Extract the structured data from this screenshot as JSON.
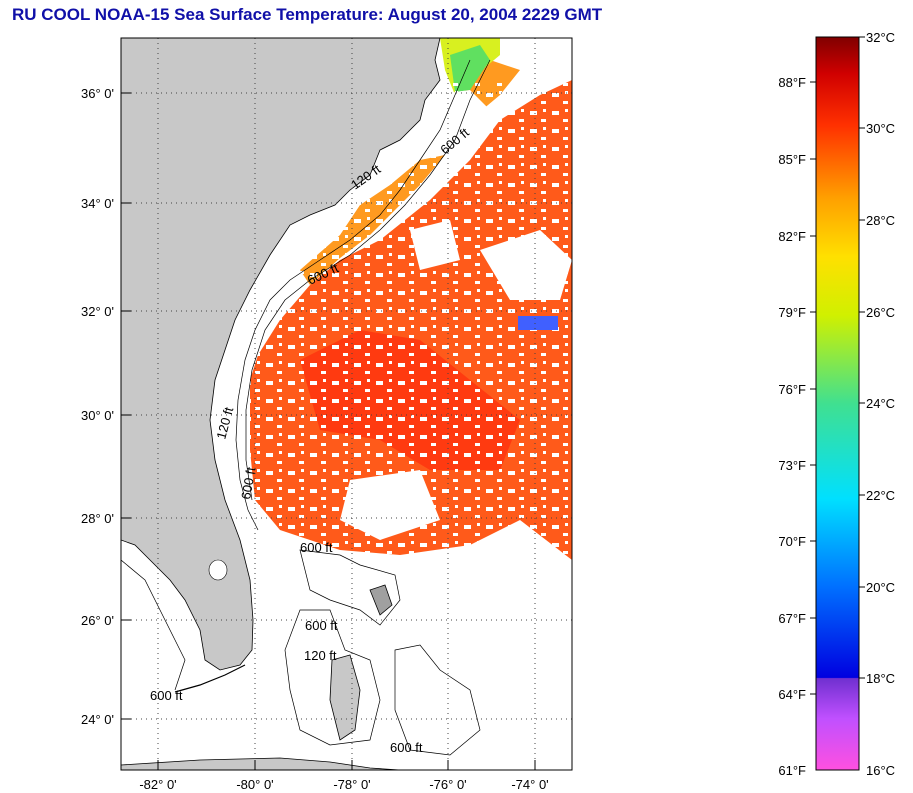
{
  "title": "RU COOL  NOAA-15  Sea Surface Temperature:  August 20, 2004 2229 GMT",
  "map": {
    "latitude_labels": [
      "36° 0'",
      "34° 0'",
      "32° 0'",
      "30° 0'",
      "28° 0'",
      "26° 0'",
      "24° 0'"
    ],
    "longitude_labels": [
      "-82° 0'",
      "-80° 0'",
      "-78° 0'",
      "-76° 0'",
      "-74° 0'"
    ],
    "contour_labels": [
      "120 ft",
      "600 ft",
      "600 ft",
      "600 ft",
      "120 ft",
      "600 ft",
      "120 ft",
      "600 ft",
      "600 ft",
      "600 ft"
    ],
    "colors": {
      "land": "#c8c8c8",
      "cloud_mask": "#ffffff",
      "warm_water": "#ff5a1a",
      "coastal_water": "#ff9a20"
    }
  },
  "colorbar": {
    "fahrenheit_labels": [
      "88°F",
      "85°F",
      "82°F",
      "79°F",
      "76°F",
      "73°F",
      "70°F",
      "67°F",
      "64°F",
      "61°F"
    ],
    "celsius_labels": [
      "32°C",
      "30°C",
      "28°C",
      "26°C",
      "24°C",
      "22°C",
      "20°C",
      "18°C",
      "16°C"
    ],
    "range_celsius": [
      16,
      32
    ],
    "range_fahrenheit": [
      61,
      89.6
    ]
  }
}
